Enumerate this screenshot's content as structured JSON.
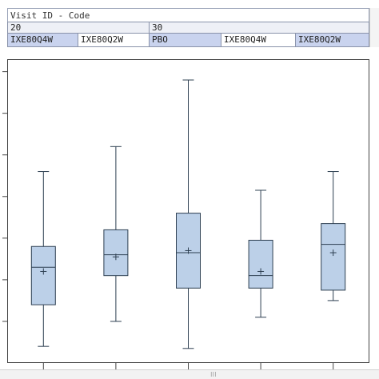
{
  "header": {
    "title": "Visit ID - Code",
    "visits": [
      "20",
      "30"
    ],
    "arms": [
      "IXE80Q4W",
      "IXE80Q2W",
      "PBO",
      "IXE80Q4W",
      "IXE80Q2W"
    ]
  },
  "colors": {
    "box_fill": "#bcd0e8",
    "box_stroke": "#2c3e50",
    "axis": "#444444",
    "header_selected": "#c9d3ee"
  },
  "chart_data": {
    "type": "box",
    "categories": [
      "IXE80Q4W",
      "IXE80Q2W",
      "PBO",
      "IXE80Q4W",
      "IXE80Q2W"
    ],
    "groups": [
      "20",
      "20",
      "30",
      "30",
      "30"
    ],
    "boxes": [
      {
        "whisker_low": 0.4,
        "q1": 1.4,
        "median": 2.3,
        "q3": 2.8,
        "whisker_high": 4.6,
        "mean": 2.2
      },
      {
        "whisker_low": 1.0,
        "q1": 2.1,
        "median": 2.6,
        "q3": 3.2,
        "whisker_high": 5.2,
        "mean": 2.55
      },
      {
        "whisker_low": 0.35,
        "q1": 1.8,
        "median": 2.65,
        "q3": 3.6,
        "whisker_high": 6.8,
        "mean": 2.7
      },
      {
        "whisker_low": 1.1,
        "q1": 1.8,
        "median": 2.1,
        "q3": 2.95,
        "whisker_high": 4.15,
        "mean": 2.2
      },
      {
        "whisker_low": 1.5,
        "q1": 1.75,
        "median": 2.85,
        "q3": 3.35,
        "whisker_high": 4.6,
        "mean": 2.65
      }
    ],
    "ylim": [
      0,
      7.3
    ],
    "y_ticks": [
      1,
      2,
      3,
      4,
      5,
      6,
      7
    ],
    "grid": false
  }
}
